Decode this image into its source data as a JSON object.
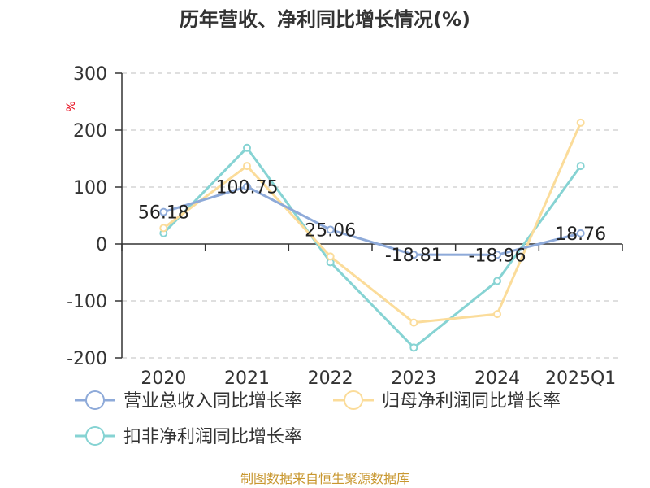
{
  "chart_data": {
    "type": "line",
    "title": "历年营收、净利同比增长情况(%)",
    "ylabel": "%",
    "categories": [
      "2020",
      "2021",
      "2022",
      "2023",
      "2024",
      "2025Q1"
    ],
    "ylim": [
      -200,
      300
    ],
    "yticks": [
      300,
      200,
      100,
      0,
      -100,
      -200
    ],
    "grid": true,
    "legend_position": "bottom",
    "series": [
      {
        "name": "营业总收入同比增长率",
        "color": "#8eaad9",
        "values": [
          56.18,
          100.75,
          25.06,
          -18.81,
          -18.96,
          18.76
        ],
        "data_labels": [
          "56.18",
          "100.75",
          "25.06",
          "-18.81",
          "-18.96",
          "18.76"
        ]
      },
      {
        "name": "归母净利润同比增长率",
        "color": "#fbdc9a",
        "values": [
          28,
          137,
          -22,
          -138,
          -123,
          213
        ]
      },
      {
        "name": "扣非净利润同比增长率",
        "color": "#86d3d3",
        "values": [
          19,
          169,
          -32,
          -182,
          -65,
          137
        ]
      }
    ],
    "source": "制图数据来自恒生聚源数据库"
  }
}
